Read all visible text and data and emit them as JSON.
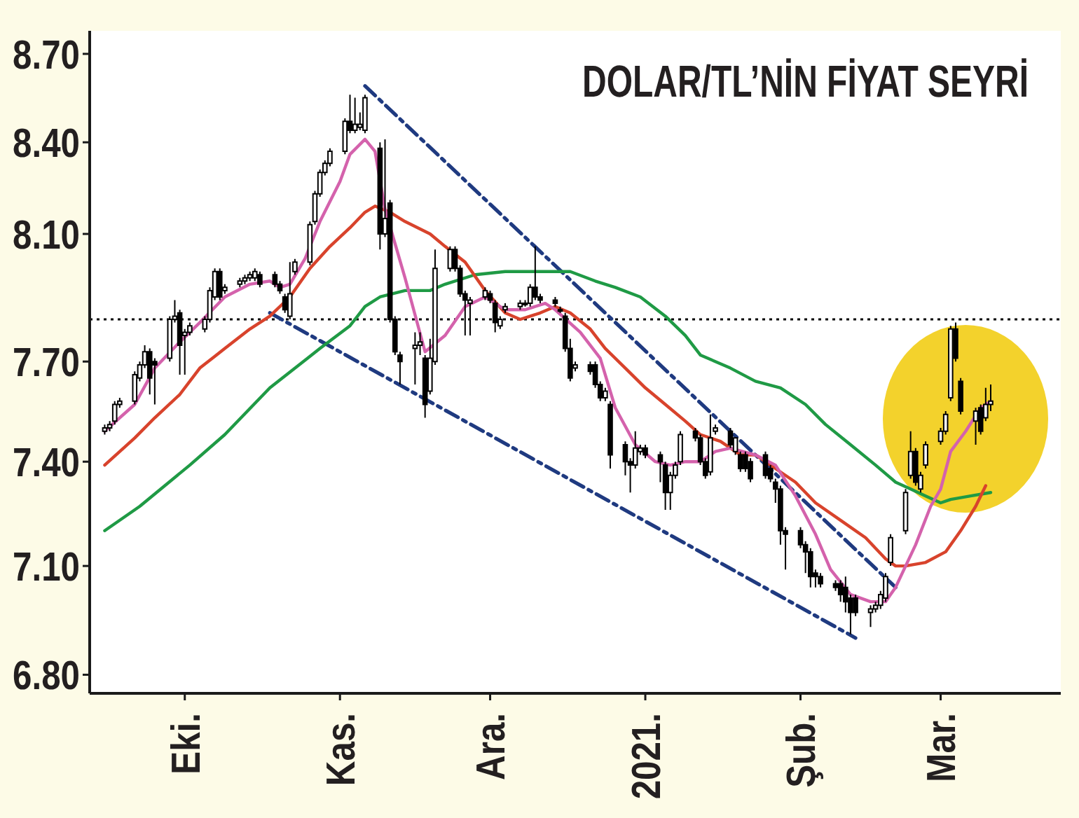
{
  "chart_data": {
    "type": "candlestick",
    "title": "DOLAR/TL’NİN FİYAT SEYRİ",
    "xlim": [
      "2020-09-12",
      "2021-03-25"
    ],
    "xticks": [
      {
        "value": "2020-10-01",
        "label": "Eki."
      },
      {
        "value": "2020-11-01",
        "label": "Kas."
      },
      {
        "value": "2020-12-01",
        "label": "Ara."
      },
      {
        "value": "2021-01-01",
        "label": "2021."
      },
      {
        "value": "2021-02-01",
        "label": "Şub."
      },
      {
        "value": "2021-03-01",
        "label": "Mar."
      }
    ],
    "ylim": [
      6.75,
      8.78
    ],
    "yticks": [
      {
        "value": 6.8,
        "label": "6.80"
      },
      {
        "value": 7.1,
        "label": "7.10"
      },
      {
        "value": 7.4,
        "label": "7.40"
      },
      {
        "value": 7.7,
        "label": "7.70"
      },
      {
        "value": 8.1,
        "label": "8.10"
      },
      {
        "value": 8.4,
        "label": "8.40"
      },
      {
        "value": 8.7,
        "label": "8.70"
      }
    ],
    "log": true,
    "ref_lines": [
      {
        "axis": "y",
        "value": 7.83,
        "color": "#000000",
        "line_style": "dotted"
      }
    ],
    "series": [
      {
        "type": "line",
        "color": "#1f3a80",
        "line_style": "dashed",
        "x": [
          "2020-11-06",
          "2021-02-20"
        ],
        "values": [
          8.59,
          7.04
        ]
      },
      {
        "type": "line",
        "color": "#1f3a80",
        "line_style": "dashed",
        "x": [
          "2020-10-18",
          "2021-02-12"
        ],
        "values": [
          7.85,
          6.9
        ]
      },
      {
        "type": "line",
        "color": "#1f9a45",
        "x": [
          "2020-09-15",
          "2020-09-22",
          "2020-10-02",
          "2020-10-09",
          "2020-10-18",
          "2020-10-28",
          "2020-11-03",
          "2020-11-06",
          "2020-11-09",
          "2020-11-14",
          "2020-11-19",
          "2020-11-22",
          "2020-11-28",
          "2020-12-04",
          "2020-12-10",
          "2020-12-13",
          "2020-12-17",
          "2020-12-22",
          "2020-12-26",
          "2020-12-31",
          "2021-01-05",
          "2021-01-09",
          "2021-01-12",
          "2021-01-18",
          "2021-01-23",
          "2021-01-28",
          "2021-02-02",
          "2021-02-06",
          "2021-02-11",
          "2021-02-16",
          "2021-02-20",
          "2021-02-23",
          "2021-02-26",
          "2021-03-01",
          "2021-03-03",
          "2021-03-07",
          "2021-03-11"
        ],
        "values": [
          7.2,
          7.27,
          7.39,
          7.48,
          7.62,
          7.74,
          7.81,
          7.87,
          7.9,
          7.92,
          7.92,
          7.94,
          7.97,
          7.98,
          7.98,
          7.98,
          7.98,
          7.95,
          7.93,
          7.9,
          7.84,
          7.78,
          7.72,
          7.68,
          7.64,
          7.62,
          7.57,
          7.51,
          7.45,
          7.39,
          7.34,
          7.32,
          7.3,
          7.28,
          7.29,
          7.3,
          7.31
        ]
      },
      {
        "type": "line",
        "color": "#d8432c",
        "x": [
          "2020-09-15",
          "2020-09-21",
          "2020-09-25",
          "2020-09-30",
          "2020-10-04",
          "2020-10-09",
          "2020-10-14",
          "2020-10-18",
          "2020-10-22",
          "2020-10-26",
          "2020-10-30",
          "2020-11-03",
          "2020-11-06",
          "2020-11-08",
          "2020-11-11",
          "2020-11-14",
          "2020-11-19",
          "2020-11-22",
          "2020-11-26",
          "2020-11-30",
          "2020-12-04",
          "2020-12-07",
          "2020-12-11",
          "2020-12-14",
          "2020-12-17",
          "2020-12-21",
          "2020-12-24",
          "2020-12-28",
          "2021-01-01",
          "2021-01-05",
          "2021-01-09",
          "2021-01-12",
          "2021-01-16",
          "2021-01-20",
          "2021-01-23",
          "2021-01-27",
          "2021-01-31",
          "2021-02-04",
          "2021-02-09",
          "2021-02-14",
          "2021-02-18",
          "2021-02-20",
          "2021-02-22",
          "2021-02-26",
          "2021-03-02",
          "2021-03-05",
          "2021-03-08",
          "2021-03-10"
        ],
        "values": [
          7.39,
          7.47,
          7.53,
          7.6,
          7.68,
          7.74,
          7.8,
          7.84,
          7.9,
          7.99,
          8.06,
          8.12,
          8.17,
          8.19,
          8.17,
          8.14,
          8.1,
          8.06,
          8.01,
          7.92,
          7.85,
          7.83,
          7.85,
          7.87,
          7.85,
          7.8,
          7.74,
          7.68,
          7.62,
          7.57,
          7.52,
          7.48,
          7.46,
          7.42,
          7.42,
          7.38,
          7.34,
          7.28,
          7.23,
          7.18,
          7.12,
          7.1,
          7.1,
          7.11,
          7.14,
          7.2,
          7.27,
          7.33
        ]
      },
      {
        "type": "line",
        "color": "#d462ac",
        "x": [
          "2020-09-15",
          "2020-09-21",
          "2020-09-25",
          "2020-09-30",
          "2020-10-04",
          "2020-10-09",
          "2020-10-14",
          "2020-10-18",
          "2020-10-20",
          "2020-10-22",
          "2020-10-25",
          "2020-10-28",
          "2020-11-01",
          "2020-11-03",
          "2020-11-06",
          "2020-11-08",
          "2020-11-10",
          "2020-11-14",
          "2020-11-18",
          "2020-11-22",
          "2020-11-26",
          "2020-11-30",
          "2020-12-04",
          "2020-12-08",
          "2020-12-12",
          "2020-12-14",
          "2020-12-19",
          "2020-12-23",
          "2020-12-26",
          "2020-12-30",
          "2021-01-03",
          "2021-01-06",
          "2021-01-09",
          "2021-01-12",
          "2021-01-15",
          "2021-01-18",
          "2021-01-23",
          "2021-01-27",
          "2021-01-31",
          "2021-02-04",
          "2021-02-07",
          "2021-02-11",
          "2021-02-15",
          "2021-02-18",
          "2021-02-20",
          "2021-02-24",
          "2021-02-27",
          "2021-03-01",
          "2021-03-03",
          "2021-03-06",
          "2021-03-09",
          "2021-03-11"
        ],
        "values": [
          7.49,
          7.57,
          7.68,
          7.76,
          7.82,
          7.9,
          7.94,
          7.95,
          7.93,
          7.94,
          8.02,
          8.14,
          8.27,
          8.36,
          8.41,
          8.37,
          8.18,
          7.96,
          7.73,
          7.78,
          7.87,
          7.9,
          7.86,
          7.86,
          7.88,
          7.86,
          7.79,
          7.71,
          7.56,
          7.45,
          7.4,
          7.39,
          7.4,
          7.4,
          7.43,
          7.44,
          7.42,
          7.39,
          7.3,
          7.19,
          7.09,
          7.02,
          7.0,
          7.0,
          7.04,
          7.16,
          7.27,
          7.32,
          7.43,
          7.49,
          7.56,
          7.58
        ]
      },
      {
        "color": "#000000",
        "x": [
          "2020-09-15",
          "2020-09-16",
          "2020-09-17",
          "2020-09-18",
          "2020-09-21",
          "2020-09-22",
          "2020-09-23",
          "2020-09-24",
          "2020-09-25",
          "2020-09-28",
          "2020-09-29",
          "2020-09-30",
          "2020-10-01",
          "2020-10-02",
          "2020-10-05",
          "2020-10-06",
          "2020-10-07",
          "2020-10-08",
          "2020-10-09",
          "2020-10-12",
          "2020-10-13",
          "2020-10-14",
          "2020-10-15",
          "2020-10-16",
          "2020-10-19",
          "2020-10-20",
          "2020-10-21",
          "2020-10-22",
          "2020-10-23",
          "2020-10-26",
          "2020-10-27",
          "2020-10-28",
          "2020-10-29",
          "2020-10-30",
          "2020-11-02",
          "2020-11-03",
          "2020-11-04",
          "2020-11-05",
          "2020-11-06",
          "2020-11-09",
          "2020-11-10",
          "2020-11-11",
          "2020-11-12",
          "2020-11-13",
          "2020-11-16",
          "2020-11-17",
          "2020-11-18",
          "2020-11-19",
          "2020-11-20",
          "2020-11-23",
          "2020-11-24",
          "2020-11-25",
          "2020-11-26",
          "2020-11-27",
          "2020-11-30",
          "2020-12-01",
          "2020-12-02",
          "2020-12-03",
          "2020-12-04",
          "2020-12-07",
          "2020-12-08",
          "2020-12-09",
          "2020-12-10",
          "2020-12-11",
          "2020-12-14",
          "2020-12-15",
          "2020-12-16",
          "2020-12-17",
          "2020-12-18",
          "2020-12-21",
          "2020-12-22",
          "2020-12-23",
          "2020-12-24",
          "2020-12-25",
          "2020-12-28",
          "2020-12-29",
          "2020-12-30",
          "2020-12-31",
          "2021-01-01",
          "2021-01-04",
          "2021-01-05",
          "2021-01-06",
          "2021-01-07",
          "2021-01-08",
          "2021-01-11",
          "2021-01-12",
          "2021-01-13",
          "2021-01-14",
          "2021-01-15",
          "2021-01-18",
          "2021-01-19",
          "2021-01-20",
          "2021-01-21",
          "2021-01-22",
          "2021-01-25",
          "2021-01-26",
          "2021-01-27",
          "2021-01-28",
          "2021-01-29",
          "2021-02-01",
          "2021-02-02",
          "2021-02-03",
          "2021-02-04",
          "2021-02-05",
          "2021-02-08",
          "2021-02-09",
          "2021-02-10",
          "2021-02-11",
          "2021-02-12",
          "2021-02-15",
          "2021-02-16",
          "2021-02-17",
          "2021-02-18",
          "2021-02-19",
          "2021-02-22",
          "2021-02-23",
          "2021-02-24",
          "2021-02-25",
          "2021-02-26",
          "2021-03-01",
          "2021-03-02",
          "2021-03-03",
          "2021-03-04",
          "2021-03-05",
          "2021-03-08",
          "2021-03-09",
          "2021-03-10",
          "2021-03-11"
        ],
        "ohlc": [
          [
            7.49,
            7.51,
            7.48,
            7.5
          ],
          [
            7.5,
            7.52,
            7.49,
            7.51
          ],
          [
            7.52,
            7.58,
            7.51,
            7.57
          ],
          [
            7.57,
            7.59,
            7.56,
            7.58
          ],
          [
            7.58,
            7.67,
            7.57,
            7.66
          ],
          [
            7.65,
            7.7,
            7.64,
            7.69
          ],
          [
            7.69,
            7.75,
            7.68,
            7.73
          ],
          [
            7.73,
            7.74,
            7.6,
            7.65
          ],
          [
            7.7,
            7.71,
            7.57,
            7.69
          ],
          [
            7.71,
            7.84,
            7.7,
            7.83
          ],
          [
            7.83,
            7.89,
            7.82,
            7.84
          ],
          [
            7.85,
            7.86,
            7.66,
            7.75
          ],
          [
            7.78,
            7.8,
            7.66,
            7.79
          ],
          [
            7.79,
            7.82,
            7.78,
            7.81
          ],
          [
            7.8,
            7.84,
            7.79,
            7.83
          ],
          [
            7.83,
            7.93,
            7.82,
            7.92
          ],
          [
            7.9,
            7.99,
            7.89,
            7.98
          ],
          [
            7.98,
            7.99,
            7.89,
            7.9
          ],
          [
            7.92,
            7.94,
            7.91,
            7.93
          ],
          [
            7.94,
            7.96,
            7.93,
            7.95
          ],
          [
            7.95,
            7.97,
            7.94,
            7.96
          ],
          [
            7.96,
            7.98,
            7.95,
            7.97
          ],
          [
            7.96,
            7.99,
            7.95,
            7.98
          ],
          [
            7.97,
            7.98,
            7.93,
            7.94
          ],
          [
            7.97,
            7.98,
            7.93,
            7.94
          ],
          [
            7.94,
            7.95,
            7.91,
            7.92
          ],
          [
            7.9,
            7.91,
            7.85,
            7.86
          ],
          [
            7.84,
            8.01,
            7.83,
            7.91
          ],
          [
            7.98,
            8.02,
            7.97,
            8.01
          ],
          [
            8.01,
            8.14,
            8.0,
            8.13
          ],
          [
            8.14,
            8.24,
            8.13,
            8.23
          ],
          [
            8.23,
            8.31,
            8.22,
            8.3
          ],
          [
            8.3,
            8.34,
            8.29,
            8.33
          ],
          [
            8.33,
            8.38,
            8.32,
            8.37
          ],
          [
            8.37,
            8.48,
            8.36,
            8.47
          ],
          [
            8.47,
            8.56,
            8.43,
            8.44
          ],
          [
            8.44,
            8.55,
            8.43,
            8.46
          ],
          [
            8.45,
            8.5,
            8.44,
            8.46
          ],
          [
            8.44,
            8.56,
            8.43,
            8.55
          ],
          [
            8.38,
            8.4,
            8.05,
            8.1
          ],
          [
            8.1,
            8.41,
            8.09,
            8.15
          ],
          [
            8.2,
            8.21,
            7.82,
            7.83
          ],
          [
            7.83,
            7.84,
            7.72,
            7.73
          ],
          [
            7.72,
            7.73,
            7.63,
            7.7
          ],
          [
            7.74,
            7.79,
            7.63,
            7.75
          ],
          [
            7.75,
            7.79,
            7.72,
            7.76
          ],
          [
            7.71,
            7.72,
            7.53,
            7.57
          ],
          [
            7.61,
            7.77,
            7.6,
            7.71
          ],
          [
            7.7,
            8.05,
            7.69,
            7.99
          ],
          [
            7.99,
            8.06,
            7.98,
            8.05
          ],
          [
            8.05,
            8.06,
            7.98,
            7.99
          ],
          [
            7.99,
            8.0,
            7.9,
            7.91
          ],
          [
            7.91,
            7.92,
            7.78,
            7.89
          ],
          [
            7.88,
            7.9,
            7.78,
            7.89
          ],
          [
            7.9,
            7.93,
            7.89,
            7.92
          ],
          [
            7.91,
            7.92,
            7.88,
            7.89
          ],
          [
            7.88,
            7.89,
            7.79,
            7.82
          ],
          [
            7.81,
            7.84,
            7.8,
            7.83
          ],
          [
            7.86,
            7.88,
            7.85,
            7.87
          ],
          [
            7.87,
            7.89,
            7.86,
            7.88
          ],
          [
            7.88,
            7.89,
            7.87,
            7.88
          ],
          [
            7.88,
            7.94,
            7.87,
            7.93
          ],
          [
            7.93,
            8.06,
            7.89,
            7.9
          ],
          [
            7.9,
            7.91,
            7.88,
            7.89
          ],
          [
            7.89,
            7.9,
            7.87,
            7.88
          ],
          [
            7.86,
            7.87,
            7.85,
            7.86
          ],
          [
            7.84,
            7.85,
            7.73,
            7.74
          ],
          [
            7.74,
            7.77,
            7.64,
            7.65
          ],
          [
            7.68,
            7.7,
            7.67,
            7.69
          ],
          [
            7.69,
            7.7,
            7.66,
            7.67
          ],
          [
            7.69,
            7.7,
            7.62,
            7.63
          ],
          [
            7.63,
            7.64,
            7.58,
            7.59
          ],
          [
            7.59,
            7.62,
            7.58,
            7.61
          ],
          [
            7.57,
            7.58,
            7.38,
            7.42
          ],
          [
            7.45,
            7.46,
            7.36,
            7.4
          ],
          [
            7.4,
            7.41,
            7.31,
            7.39
          ],
          [
            7.39,
            7.49,
            7.38,
            7.44
          ],
          [
            7.43,
            7.45,
            7.42,
            7.44
          ],
          [
            7.44,
            7.45,
            7.41,
            7.42
          ],
          [
            7.42,
            7.43,
            7.34,
            7.4
          ],
          [
            7.39,
            7.4,
            7.26,
            7.31
          ],
          [
            7.31,
            7.37,
            7.26,
            7.36
          ],
          [
            7.36,
            7.4,
            7.35,
            7.39
          ],
          [
            7.4,
            7.49,
            7.39,
            7.48
          ],
          [
            7.49,
            7.5,
            7.46,
            7.47
          ],
          [
            7.47,
            7.48,
            7.39,
            7.4
          ],
          [
            7.4,
            7.41,
            7.35,
            7.36
          ],
          [
            7.37,
            7.54,
            7.36,
            7.47
          ],
          [
            7.49,
            7.51,
            7.48,
            7.5
          ],
          [
            7.49,
            7.5,
            7.44,
            7.45
          ],
          [
            7.43,
            7.47,
            7.42,
            7.47
          ],
          [
            7.42,
            7.43,
            7.37,
            7.38
          ],
          [
            7.42,
            7.43,
            7.37,
            7.38
          ],
          [
            7.4,
            7.41,
            7.34,
            7.35
          ],
          [
            7.42,
            7.43,
            7.35,
            7.36
          ],
          [
            7.38,
            7.39,
            7.34,
            7.35
          ],
          [
            7.34,
            7.35,
            7.28,
            7.32
          ],
          [
            7.32,
            7.33,
            7.16,
            7.2
          ],
          [
            7.2,
            7.21,
            7.09,
            7.19
          ],
          [
            7.2,
            7.21,
            7.15,
            7.16
          ],
          [
            7.16,
            7.17,
            7.08,
            7.14
          ],
          [
            7.14,
            7.15,
            7.04,
            7.07
          ],
          [
            7.08,
            7.09,
            7.04,
            7.07
          ],
          [
            7.07,
            7.08,
            7.04,
            7.05
          ],
          [
            7.05,
            7.06,
            7.03,
            7.04
          ],
          [
            7.05,
            7.06,
            7.0,
            7.02
          ],
          [
            7.04,
            7.07,
            6.97,
            7.0
          ],
          [
            7.01,
            7.02,
            6.91,
            6.97
          ],
          [
            7.01,
            7.02,
            6.96,
            6.97
          ],
          [
            6.97,
            6.99,
            6.93,
            6.98
          ],
          [
            6.98,
            7.0,
            6.97,
            6.99
          ],
          [
            6.99,
            7.03,
            6.98,
            7.02
          ],
          [
            7.01,
            7.08,
            7.0,
            7.07
          ],
          [
            7.11,
            7.19,
            7.1,
            7.18
          ],
          [
            7.2,
            7.32,
            7.19,
            7.31
          ],
          [
            7.36,
            7.49,
            7.35,
            7.43
          ],
          [
            7.43,
            7.44,
            7.33,
            7.34
          ],
          [
            7.32,
            7.37,
            7.31,
            7.36
          ],
          [
            7.39,
            7.46,
            7.38,
            7.45
          ],
          [
            7.46,
            7.5,
            7.45,
            7.49
          ],
          [
            7.49,
            7.55,
            7.48,
            7.54
          ],
          [
            7.59,
            7.81,
            7.58,
            7.8
          ],
          [
            7.8,
            7.82,
            7.7,
            7.71
          ],
          [
            7.64,
            7.65,
            7.54,
            7.55
          ],
          [
            7.52,
            7.56,
            7.45,
            7.55
          ],
          [
            7.56,
            7.57,
            7.48,
            7.49
          ],
          [
            7.53,
            7.62,
            7.52,
            7.57
          ],
          [
            7.57,
            7.63,
            7.55,
            7.58
          ]
        ]
      }
    ]
  }
}
